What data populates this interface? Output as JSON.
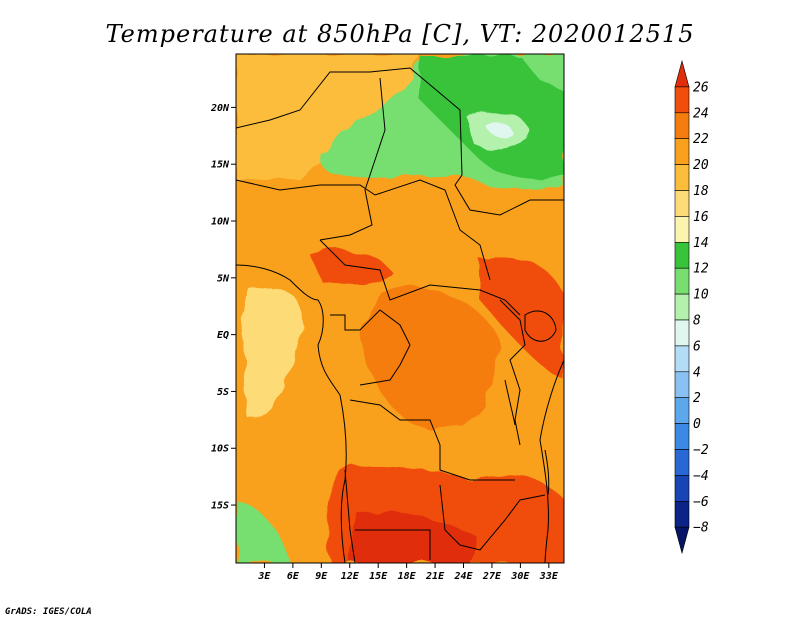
{
  "title": "Temperature at 850hPa [C], VT: 2020012515",
  "credit": "GrADS: IGES/COLA",
  "chart_data": {
    "type": "heatmap",
    "title": "Temperature at 850hPa [C], VT: 2020012515",
    "variable": "Temperature at 850hPa",
    "units": "C",
    "valid_time": "2020012515",
    "lat_ticks": [
      "20N",
      "15N",
      "10N",
      "5N",
      "EQ",
      "5S",
      "10S",
      "15S"
    ],
    "lat_values": [
      20,
      15,
      10,
      5,
      0,
      -5,
      -10,
      -15
    ],
    "lon_ticks": [
      "3E",
      "6E",
      "9E",
      "12E",
      "15E",
      "18E",
      "21E",
      "24E",
      "27E",
      "30E",
      "33E"
    ],
    "lon_values": [
      3,
      6,
      9,
      12,
      15,
      18,
      21,
      24,
      27,
      30,
      33
    ],
    "colorbar": {
      "levels": [
        26,
        24,
        22,
        20,
        18,
        16,
        14,
        12,
        10,
        8,
        6,
        4,
        2,
        0,
        -2,
        -4,
        -6,
        -8
      ],
      "labels": [
        "26",
        "24",
        "22",
        "20",
        "18",
        "16",
        "14",
        "12",
        "10",
        "8",
        "6",
        "4",
        "2",
        "0",
        "−2",
        "−4",
        "−6",
        "−8"
      ],
      "colors": [
        "#e02d0c",
        "#f04e0a",
        "#f57d10",
        "#f9a11c",
        "#fbbd3b",
        "#fddc78",
        "#fbf4ae",
        "#39c33a",
        "#77de6f",
        "#b4f1ad",
        "#dff7ef",
        "#b3dcf7",
        "#89c2f2",
        "#5da7ec",
        "#3b89e2",
        "#2868d4",
        "#1845b4",
        "#0c2388",
        "#061566"
      ]
    }
  }
}
